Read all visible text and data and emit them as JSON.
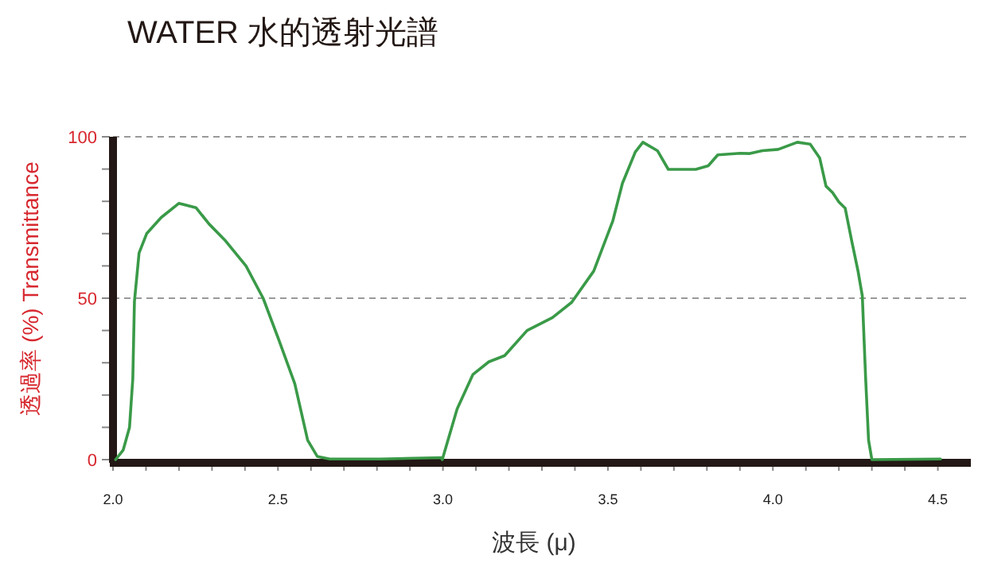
{
  "chart_data": {
    "type": "line",
    "title": "WATER  水的透射光譜",
    "xlabel": "波長 (μ)",
    "ylabel": "透過率 (%) Transmittance",
    "xlim": [
      2.0,
      4.6
    ],
    "ylim": [
      0,
      100
    ],
    "xticks": [
      {
        "value": 2.0,
        "label": "2.0"
      },
      {
        "value": 2.1,
        "label": null
      },
      {
        "value": 2.2,
        "label": null
      },
      {
        "value": 2.3,
        "label": null
      },
      {
        "value": 2.4,
        "label": null
      },
      {
        "value": 2.5,
        "label": "2.5"
      },
      {
        "value": 2.6,
        "label": null
      },
      {
        "value": 2.7,
        "label": null
      },
      {
        "value": 2.8,
        "label": null
      },
      {
        "value": 2.9,
        "label": null
      },
      {
        "value": 3.0,
        "label": "3.0"
      },
      {
        "value": 3.1,
        "label": null
      },
      {
        "value": 3.2,
        "label": null
      },
      {
        "value": 3.3,
        "label": null
      },
      {
        "value": 3.4,
        "label": null
      },
      {
        "value": 3.5,
        "label": "3.5"
      },
      {
        "value": 3.6,
        "label": null
      },
      {
        "value": 3.7,
        "label": null
      },
      {
        "value": 3.8,
        "label": null
      },
      {
        "value": 3.9,
        "label": null
      },
      {
        "value": 4.0,
        "label": "4.0"
      },
      {
        "value": 4.1,
        "label": null
      },
      {
        "value": 4.2,
        "label": null
      },
      {
        "value": 4.3,
        "label": null
      },
      {
        "value": 4.4,
        "label": null
      },
      {
        "value": 4.5,
        "label": "4.5"
      }
    ],
    "yticks": [
      0,
      {
        "value": 10,
        "label": null
      },
      {
        "value": 20,
        "label": null
      },
      {
        "value": 30,
        "label": null
      },
      {
        "value": 40,
        "label": null
      },
      50,
      {
        "value": 60,
        "label": null
      },
      {
        "value": 70,
        "label": null
      },
      {
        "value": 80,
        "label": null
      },
      {
        "value": 90,
        "label": null
      },
      100
    ],
    "grid": "y",
    "marker": "none",
    "line_style": "solid",
    "series": [
      {
        "color": "#3a9a48",
        "x": [
          2.008,
          2.031,
          2.05,
          2.06,
          2.065,
          2.079,
          2.102,
          2.146,
          2.2,
          2.252,
          2.291,
          2.339,
          2.403,
          2.455,
          2.503,
          2.551,
          2.59,
          2.619,
          2.657,
          2.81,
          2.995,
          2.998,
          3.043,
          3.091,
          3.139,
          3.187,
          3.255,
          3.332,
          3.39,
          3.457,
          3.515,
          3.544,
          3.583,
          3.606,
          3.65,
          3.683,
          3.727,
          3.766,
          3.804,
          3.833,
          3.901,
          3.93,
          3.968,
          4.016,
          4.074,
          4.113,
          4.142,
          4.161,
          4.181,
          4.2,
          4.219,
          4.238,
          4.258,
          4.271,
          4.281,
          4.29,
          4.3,
          4.508
        ],
        "values": [
          0,
          3,
          10,
          25,
          49,
          64,
          70,
          75,
          79.4,
          78,
          73,
          68,
          60,
          50,
          37,
          23.5,
          6,
          1,
          0.2,
          0.2,
          0.6,
          0,
          15.7,
          26.4,
          30.3,
          32.2,
          40,
          44,
          48.7,
          58.4,
          74,
          85.6,
          95.3,
          98.3,
          95.7,
          89.9,
          89.9,
          89.9,
          91,
          94.4,
          94.9,
          94.8,
          95.7,
          96.1,
          98.3,
          97.7,
          93.4,
          84.7,
          82.7,
          79.8,
          77.9,
          68.2,
          58.4,
          50.7,
          25.4,
          6,
          0,
          0.2
        ]
      }
    ]
  }
}
